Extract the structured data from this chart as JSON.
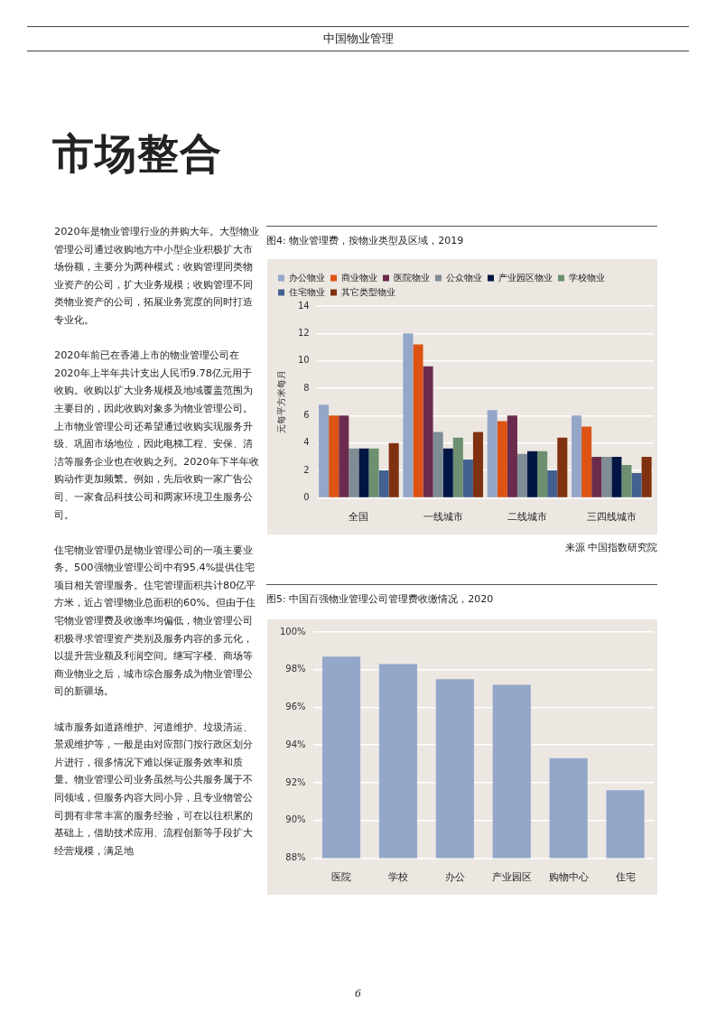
{
  "chart_data": [
    {
      "type": "other",
      "title": "市场整合",
      "annotations": [
        "中国物业管理",
        "2020年是物业管理行业的并购大年。大型物业管理公司通过收购地方中小型企业积极扩大市场份额，主要分为两种模式：收购管理同类物业资产的公司，扩大业务规模；收购管理不同类物业资产的公司，拓展业务宽度的同时打造专业化。",
        "2020年前已在香港上市的物业管理公司在2020年上半年共计支出人民币9.78亿元用于收购。收购以扩大业务规模及地域覆盖范围为主要目的，因此收购对象多为物业管理公司。上市物业管理公司还希望通过收购实现服务升级、巩固市场地位，因此电梯工程、安保、清洁等服务企业也在收购之列。2020年下半年收购动作更加频繁。例如，先后收购一家广告公司、一家食品科技公司和两家环境卫生服务公司。",
        "住宅物业管理仍是物业管理公司的一项主要业务。500强物业管理公司中有95.4%提供住宅项目相关管理服务。住宅管理面积共计80亿平方米，近占管理物业总面积的60%。但由于住宅物业管理费及收缴率均偏低，物业管理公司积极寻求管理资产类别及服务内容的多元化，以提升营业额及利润空间。继写字楼、商场等商业物业之后，城市综合服务成为物业管理公司的新疆场。",
        "城市服务如道路维护、河道维护、垃圾清运、景观维护等，一般是由对应部门按行政区划分片进行，很多情况下难以保证服务效率和质量。物业管理公司业务虽然与公共服务属于不同领域，但服务内容大同小异，且专业物管公司拥有非常丰富的服务经验，可在以往积累的基础上，借助技术应用、流程创新等手段扩大经营规模，满足地",
        "6"
      ]
    },
    {
      "type": "bar",
      "title": "图4: 物业管理费，按物业类型及区域，2019",
      "ylabel": "元每平方米每月",
      "categories": [
        "全国",
        "一线城市",
        "二线城市",
        "三四线城市"
      ],
      "series": [
        {
          "name": "办公物业",
          "color": "#94a7c9",
          "values": [
            6.8,
            12,
            6.4,
            6
          ]
        },
        {
          "name": "商业物业",
          "color": "#dc5314",
          "values": [
            6,
            11.2,
            5.6,
            5.2
          ]
        },
        {
          "name": "医院物业",
          "color": "#6b2b4c",
          "values": [
            6,
            9.6,
            6,
            3
          ]
        },
        {
          "name": "公众物业",
          "color": "#7f8c95",
          "values": [
            3.6,
            4.8,
            3.2,
            3
          ]
        },
        {
          "name": "产业园区物业",
          "color": "#001543",
          "values": [
            3.6,
            3.6,
            3.4,
            3
          ]
        },
        {
          "name": "学校物业",
          "color": "#6c9070",
          "values": [
            3.6,
            4.4,
            3.4,
            2.4
          ]
        },
        {
          "name": "住宅物业",
          "color": "#436090",
          "values": [
            2,
            2.8,
            2,
            1.8
          ]
        },
        {
          "name": "其它类型物业",
          "color": "#80310f",
          "values": [
            4,
            4.8,
            4.4,
            3
          ]
        }
      ],
      "ylim": [
        0,
        14
      ],
      "yticks": [
        0,
        2,
        4,
        6,
        8,
        10,
        12,
        14
      ],
      "grid": "y",
      "legend": "top",
      "annotations": [
        "来源 中国指数研究院"
      ]
    },
    {
      "type": "bar",
      "title": "图5: 中国百强物业管理公司管理费收缴情况，2020",
      "categories": [
        "医院",
        "学校",
        "办公",
        "产业园区",
        "购物中心",
        "住宅"
      ],
      "values": [
        98.7,
        98.3,
        97.5,
        97.2,
        93.3,
        91.6
      ],
      "color": "#94a7c9",
      "ylim": [
        88,
        100
      ],
      "yticks": [
        {
          "value": 88,
          "label": "88%"
        },
        {
          "value": 90,
          "label": "90%"
        },
        {
          "value": 92,
          "label": "92%"
        },
        {
          "value": 94,
          "label": "94%"
        },
        {
          "value": 96,
          "label": "96%"
        },
        {
          "value": 98,
          "label": "98%"
        },
        {
          "value": 100,
          "label": "100%"
        }
      ],
      "grid": "y"
    }
  ]
}
